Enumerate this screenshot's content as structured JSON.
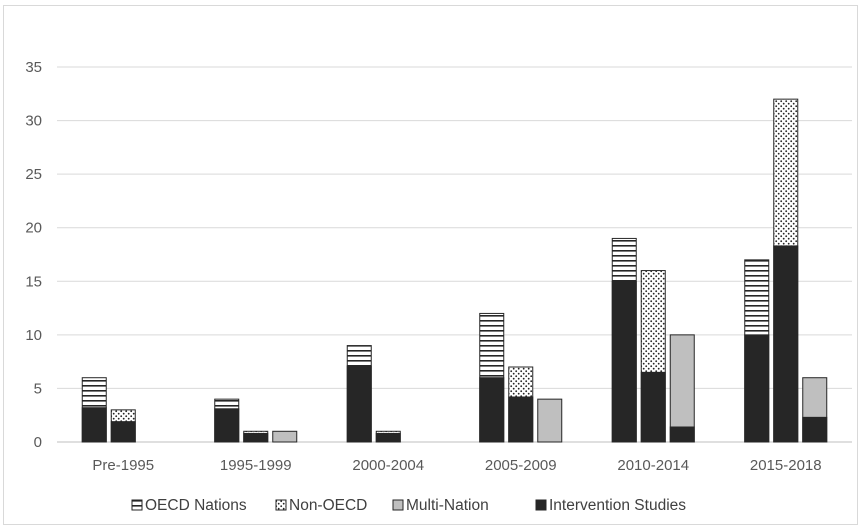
{
  "chart_data": {
    "type": "bar",
    "stacked": true,
    "categories": [
      "Pre-1995",
      "1995-1999",
      "2000-2004",
      "2005-2009",
      "2010-2014",
      "2015-2018"
    ],
    "ylim": [
      0,
      35
    ],
    "yticks": [
      0,
      5,
      10,
      15,
      20,
      25,
      30,
      35
    ],
    "grid": true,
    "legend_position": "bottom",
    "legend": [
      "OECD Nations",
      "Non-OECD",
      "Multi-Nation",
      "Intervention Studies"
    ],
    "series": [
      {
        "name": "OECD Nations",
        "pattern": "horizontal-lines",
        "totals": [
          6,
          4,
          9,
          12,
          19,
          17
        ],
        "intervention": [
          3.2,
          3.1,
          7.1,
          6.0,
          15.0,
          10.0
        ]
      },
      {
        "name": "Non-OECD",
        "pattern": "dots",
        "totals": [
          3,
          1,
          1,
          7,
          16,
          32
        ],
        "intervention": [
          1.9,
          0.8,
          0.8,
          4.2,
          6.5,
          18.3
        ]
      },
      {
        "name": "Multi-Nation",
        "pattern": "solid-gray",
        "totals": [
          0,
          1,
          0,
          4,
          10,
          6
        ],
        "intervention": [
          0,
          0,
          0,
          0,
          1.4,
          2.3
        ]
      }
    ],
    "colors": {
      "intervention": "#262626",
      "multi": "#bfbfbf",
      "grid": "#d9d9d9",
      "outline": "#262626"
    }
  }
}
